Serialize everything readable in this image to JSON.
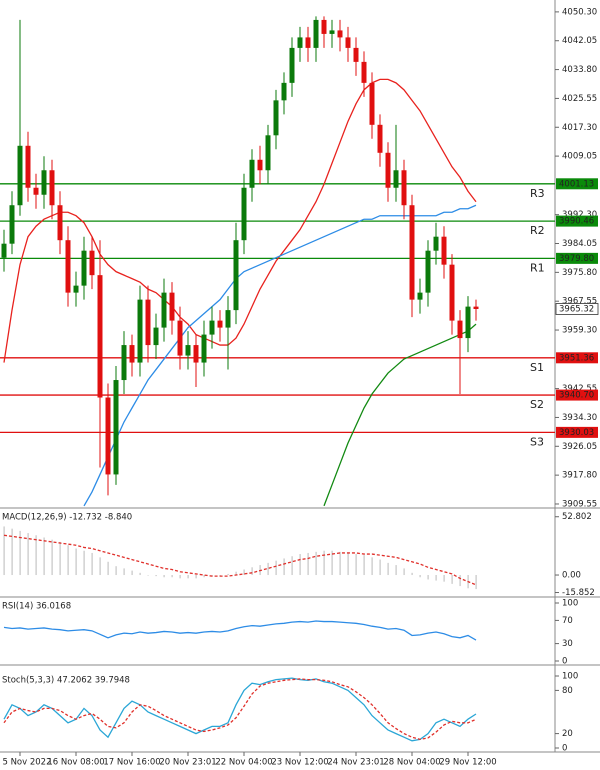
{
  "chart_data": [
    {
      "type": "candlestick",
      "categories": [
        null,
        null,
        "5 Nov 2022",
        null,
        null,
        null,
        null,
        null,
        null,
        "16 Nov 08:00",
        null,
        null,
        null,
        null,
        null,
        null,
        "17 Nov 16:00",
        null,
        null,
        null,
        null,
        null,
        null,
        "20 Nov 23:01",
        null,
        null,
        null,
        null,
        null,
        null,
        "22 Nov 04:00",
        null,
        null,
        null,
        null,
        null,
        null,
        "23 Nov 12:00",
        null,
        null,
        null,
        null,
        null,
        null,
        "24 Nov 23:01",
        null,
        null,
        null,
        null,
        null,
        null,
        "28 Nov 04:00",
        null,
        null,
        null,
        null,
        null,
        null,
        "29 Nov 12:00",
        null
      ],
      "open": [
        3980,
        3984,
        3995,
        4012,
        4000,
        3998,
        4005,
        3995,
        3985,
        3970,
        3972,
        3982,
        3975,
        3940,
        3918,
        3945,
        3955,
        3950,
        3968,
        3955,
        3960,
        3970,
        3962,
        3952,
        3955,
        3950,
        3958,
        3962,
        3960,
        3965,
        3985,
        4000,
        4008,
        4005,
        4015,
        4025,
        4030,
        4040,
        4043,
        4040,
        4048,
        4044,
        4045,
        4043,
        4040,
        4036,
        4030,
        4018,
        4010,
        4000,
        4005,
        3995,
        3968,
        3970,
        3982,
        3986,
        3978,
        3962,
        3957,
        3966
      ],
      "high": [
        3988,
        3999,
        4048,
        4016,
        4004,
        4009,
        4008,
        3999,
        3989,
        3976,
        3986,
        3986,
        3985,
        3944,
        3949,
        3959,
        3958,
        3972,
        3972,
        3964,
        3974,
        3973,
        3966,
        3959,
        3958,
        3962,
        3966,
        3965,
        3969,
        3990,
        4004,
        4011,
        4012,
        4018,
        4028,
        4033,
        4043,
        4046,
        4046,
        4049,
        4049,
        4048,
        4048,
        4046,
        4043,
        4039,
        4033,
        4021,
        4013,
        4018,
        4008,
        3998,
        3974,
        3985,
        3990,
        3989,
        3981,
        3965,
        3969,
        3968
      ],
      "low": [
        3976,
        3981,
        3992,
        3996,
        3994,
        3994,
        3991,
        3981,
        3966,
        3966,
        3968,
        3971,
        3920,
        3912,
        3915,
        3941,
        3946,
        3946,
        3950,
        3951,
        3956,
        3958,
        3948,
        3948,
        3943,
        3946,
        3954,
        3956,
        3948,
        3961,
        3981,
        3996,
        4001,
        4001,
        4011,
        4021,
        4026,
        4036,
        4036,
        4036,
        4040,
        4040,
        4039,
        4036,
        4032,
        4026,
        4014,
        4006,
        3996,
        3996,
        3991,
        3963,
        3964,
        3966,
        3978,
        3974,
        3958,
        3941,
        3953,
        3962
      ],
      "close": [
        3984,
        3995,
        4012,
        4000,
        3998,
        4005,
        3995,
        3985,
        3970,
        3972,
        3982,
        3975,
        3940,
        3918,
        3945,
        3955,
        3950,
        3968,
        3955,
        3960,
        3970,
        3962,
        3952,
        3955,
        3950,
        3958,
        3962,
        3960,
        3965,
        3985,
        4000,
        4008,
        4005,
        4015,
        4025,
        4030,
        4040,
        4043,
        4040,
        4048,
        4044,
        4045,
        4043,
        4040,
        4036,
        4030,
        4018,
        4010,
        4000,
        4005,
        3995,
        3968,
        3970,
        3982,
        3986,
        3978,
        3962,
        3957,
        3966,
        3965.32
      ],
      "up_color": "#0b7a0b",
      "down_color": "#e01010",
      "series": [
        {
          "color": "#e8221e",
          "values": [
            3950,
            3965,
            3978,
            3986,
            3989,
            3991,
            3992,
            3993,
            3993,
            3992,
            3990,
            3986,
            3981,
            3978,
            3976,
            3975,
            3974,
            3973,
            3971,
            3970,
            3968,
            3966,
            3963,
            3961,
            3958,
            3957,
            3956,
            3955,
            3955,
            3957,
            3961,
            3966,
            3971,
            3975,
            3979,
            3982,
            3985,
            3988,
            3992,
            3996,
            4001,
            4007,
            4013,
            4019,
            4024,
            4028,
            4030,
            4031,
            4031,
            4030,
            4028,
            4025,
            4022,
            4018,
            4014,
            4010,
            4006,
            4003,
            3999,
            3996
          ]
        },
        {
          "color": "#2d8ce6",
          "values": [
            null,
            null,
            null,
            null,
            null,
            null,
            null,
            null,
            null,
            null,
            3909,
            3913,
            3918,
            3923,
            3928,
            3933,
            3937,
            3941,
            3945,
            3948,
            3951,
            3954,
            3957,
            3960,
            3962,
            3964,
            3966,
            3968,
            3971,
            3974,
            3976,
            3977,
            3978,
            3979,
            3980,
            3981,
            3982,
            3983,
            3984,
            3985,
            3986,
            3987,
            3988,
            3989,
            3990,
            3991,
            3991,
            3992,
            3992,
            3992,
            3992,
            3992,
            3992,
            3992,
            3992,
            3993,
            3993,
            3994,
            3994,
            3995
          ]
        },
        {
          "color": "#128a12",
          "values": [
            null,
            null,
            null,
            null,
            null,
            null,
            null,
            null,
            null,
            null,
            null,
            null,
            null,
            null,
            null,
            null,
            null,
            null,
            null,
            null,
            null,
            null,
            null,
            null,
            null,
            null,
            null,
            null,
            null,
            null,
            null,
            null,
            null,
            null,
            null,
            null,
            null,
            null,
            null,
            null,
            3909,
            3915,
            3921,
            3927,
            3932,
            3937,
            3941,
            3944,
            3947,
            3949,
            3951,
            3952,
            3953,
            3954,
            3955,
            3956,
            3957,
            3958,
            3959,
            3961
          ]
        }
      ],
      "levels": [
        {
          "name": "R3",
          "value": 4001.13,
          "value_label": "4001.13",
          "color": "#0a8a0a"
        },
        {
          "name": "R2",
          "value": 3990.46,
          "value_label": "3990.46",
          "color": "#0a8a0a"
        },
        {
          "name": "R1",
          "value": 3979.8,
          "value_label": "3979.80",
          "color": "#0a8a0a"
        },
        {
          "name": "S1",
          "value": 3951.36,
          "value_label": "3951.36",
          "color": "#e01010"
        },
        {
          "name": "S2",
          "value": 3940.7,
          "value_label": "3940.70",
          "color": "#e01010"
        },
        {
          "name": "S3",
          "value": 3930.03,
          "value_label": "3930.03",
          "color": "#e01010"
        }
      ],
      "last_price": 3965.32,
      "ylim": [
        3908.4,
        4053.7
      ],
      "yticks": [
        {
          "value": 4050.3,
          "label": "4050.30"
        },
        4042.05,
        {
          "value": 4033.8,
          "label": "4033.80"
        },
        4025.55,
        {
          "value": 4017.3,
          "label": "4017.30"
        },
        4009.05,
        {
          "value": 3992.3,
          "label": "3992.30"
        },
        3984.05,
        {
          "value": 3975.8,
          "label": "3975.80"
        },
        3967.55,
        {
          "value": 3959.3,
          "label": "3959.30"
        },
        3942.55,
        {
          "value": 3934.3,
          "label": "3934.30"
        },
        3926.05,
        {
          "value": 3917.8,
          "label": "3917.80"
        },
        3909.55
      ]
    },
    {
      "type": "bar",
      "title": "MACD(12,26,9) -12.732 -8.840",
      "color": "#c4c4c4",
      "values": [
        44,
        42,
        40,
        38,
        36,
        34,
        32,
        30,
        27,
        24,
        22,
        20,
        16,
        12,
        8,
        6,
        4,
        2,
        0,
        -1,
        -2,
        -2,
        -3,
        -3,
        -3,
        -2,
        -1,
        0,
        1,
        3,
        5,
        7,
        9,
        11,
        13,
        15,
        17,
        19,
        20,
        21,
        22,
        22,
        21,
        20,
        19,
        18,
        16,
        14,
        11,
        9,
        6,
        2,
        -2,
        -4,
        -5,
        -6,
        -8,
        -10,
        -12,
        -12.732
      ],
      "series": [
        {
          "color": "#e0302b",
          "dashed": true,
          "values": [
            36,
            35,
            34,
            33,
            32,
            31,
            30,
            29,
            28,
            27,
            25,
            24,
            22,
            20,
            18,
            16,
            14,
            12,
            10,
            8,
            6,
            5,
            3,
            2,
            1,
            0,
            -1,
            -1,
            -1,
            0,
            1,
            2,
            4,
            6,
            8,
            10,
            12,
            14,
            15,
            17,
            18,
            19,
            20,
            20,
            20,
            19,
            19,
            18,
            17,
            16,
            14,
            12,
            10,
            7,
            5,
            3,
            1,
            -3,
            -6,
            -8.84
          ]
        }
      ],
      "ylim": [
        -19,
        58
      ],
      "yticks": [
        52.802,
        {
          "value": 0,
          "label": "0.00"
        },
        -15.852
      ]
    },
    {
      "type": "line",
      "title": "RSI(14) 36.0168",
      "series": [
        {
          "color": "#2d8ce6",
          "values": [
            58,
            56,
            57,
            55,
            56,
            57,
            55,
            54,
            52,
            53,
            54,
            52,
            46,
            40,
            45,
            48,
            47,
            50,
            48,
            49,
            51,
            50,
            48,
            49,
            48,
            50,
            51,
            50,
            52,
            56,
            59,
            61,
            60,
            62,
            64,
            65,
            67,
            68,
            67,
            69,
            68,
            68,
            67,
            66,
            65,
            63,
            60,
            58,
            55,
            56,
            53,
            44,
            45,
            48,
            50,
            47,
            42,
            40,
            44,
            36.0168
          ]
        }
      ],
      "ylim": [
        0,
        100
      ],
      "yticks": [
        100,
        70,
        30,
        0
      ]
    },
    {
      "type": "line",
      "title": "Stoch(5,3,3) 47.2062 39.7948",
      "series": [
        {
          "color": "#2aa6d6",
          "values": [
            40,
            60,
            55,
            45,
            50,
            60,
            55,
            45,
            35,
            40,
            55,
            45,
            25,
            15,
            35,
            55,
            65,
            60,
            50,
            45,
            40,
            35,
            30,
            25,
            20,
            25,
            30,
            30,
            35,
            60,
            80,
            90,
            88,
            92,
            95,
            96,
            97,
            95,
            94,
            96,
            92,
            90,
            85,
            80,
            70,
            60,
            45,
            35,
            25,
            20,
            15,
            10,
            12,
            20,
            35,
            40,
            35,
            30,
            40,
            47.2062
          ]
        },
        {
          "color": "#e0302b",
          "dashed": true,
          "values": [
            35,
            50,
            55,
            52,
            50,
            55,
            55,
            52,
            45,
            40,
            45,
            48,
            40,
            30,
            28,
            35,
            50,
            60,
            58,
            52,
            45,
            40,
            35,
            30,
            25,
            23,
            25,
            28,
            32,
            42,
            58,
            75,
            86,
            90,
            92,
            94,
            95,
            96,
            95,
            95,
            94,
            92,
            88,
            85,
            78,
            70,
            60,
            48,
            35,
            27,
            20,
            15,
            12,
            14,
            22,
            32,
            37,
            35,
            35,
            39.7948
          ]
        }
      ],
      "ylim": [
        0,
        100
      ],
      "yticks": [
        100,
        80,
        20,
        0
      ]
    }
  ]
}
